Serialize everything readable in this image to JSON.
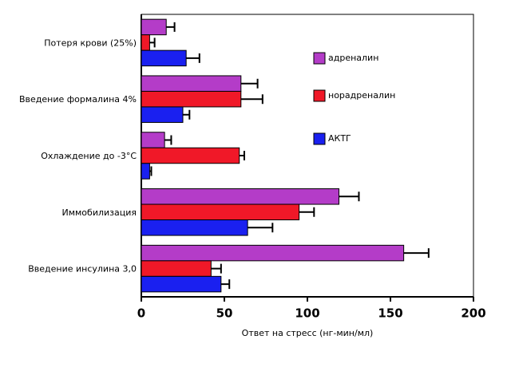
{
  "chart_data": {
    "type": "hbar",
    "categories": [
      "Потеря крови (25%)",
      "Введение формалина 4%",
      "Охлаждение до -3°C",
      "Иммобилизация",
      "Введение инсулина 3,0"
    ],
    "series": [
      {
        "name": "адреналин",
        "color": "#b43cc8",
        "values": [
          15,
          60,
          14,
          119,
          158
        ],
        "errors": [
          5,
          10,
          4,
          12,
          15
        ]
      },
      {
        "name": "норадреналин",
        "color": "#f01828",
        "values": [
          5,
          60,
          59,
          95,
          42
        ],
        "errors": [
          3,
          13,
          3,
          9,
          6
        ]
      },
      {
        "name": "АКТГ",
        "color": "#1a20f0",
        "values": [
          27,
          25,
          5,
          64,
          48
        ],
        "errors": [
          8,
          4,
          1,
          15,
          5
        ]
      }
    ],
    "xlabel": "Ответ на стресс (нг-мин/мл)",
    "xlim": [
      0,
      200
    ],
    "xticks": [
      0,
      50,
      100,
      150,
      200
    ]
  }
}
